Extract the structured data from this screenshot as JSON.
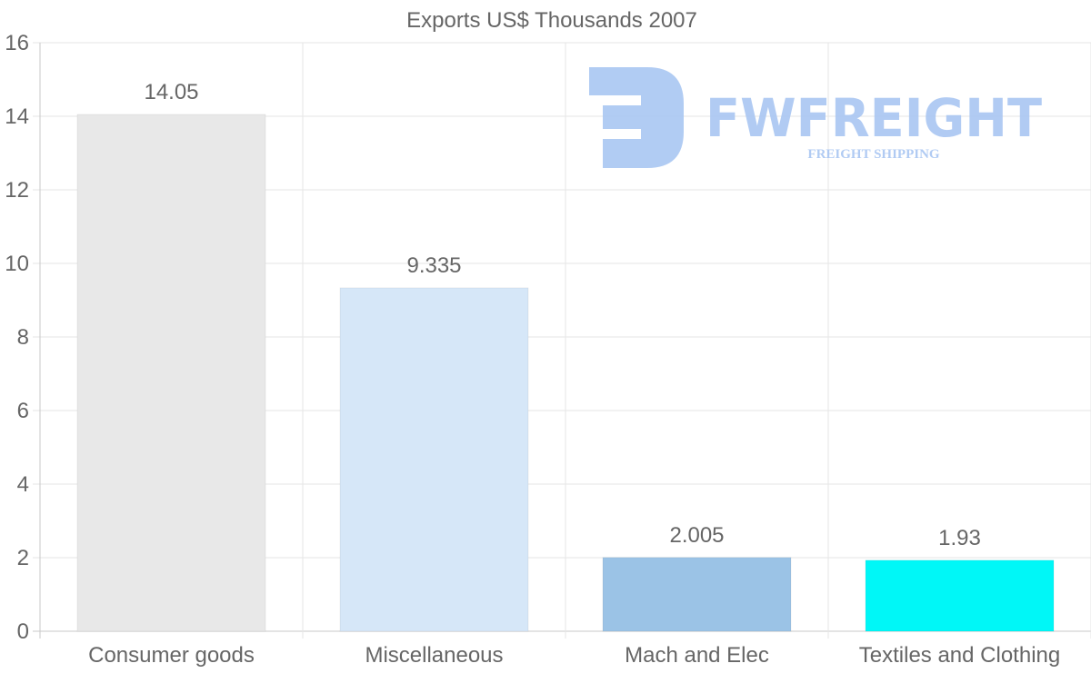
{
  "chart_data": {
    "type": "bar",
    "title": "Exports US$ Thousands 2007",
    "categories": [
      "Consumer goods",
      "Miscellaneous",
      "Mach and Elec",
      "Textiles and Clothing"
    ],
    "values": [
      14.05,
      9.335,
      2.005,
      1.93
    ],
    "value_labels": [
      "14.05",
      "9.335",
      "2.005",
      "1.93"
    ],
    "colors": [
      "#e8e8e8",
      "#d6e7f8",
      "#9bc3e6",
      "#00f7f7"
    ],
    "xlabel": "",
    "ylabel": "",
    "ylim": [
      0,
      16
    ],
    "yticks": [
      0,
      2,
      4,
      6,
      8,
      10,
      12,
      14,
      16
    ],
    "grid": true
  },
  "watermark": {
    "brand": "FWFREIGHT",
    "tagline": "FREIGHT SHIPPING",
    "color": "#a9c6f2"
  }
}
